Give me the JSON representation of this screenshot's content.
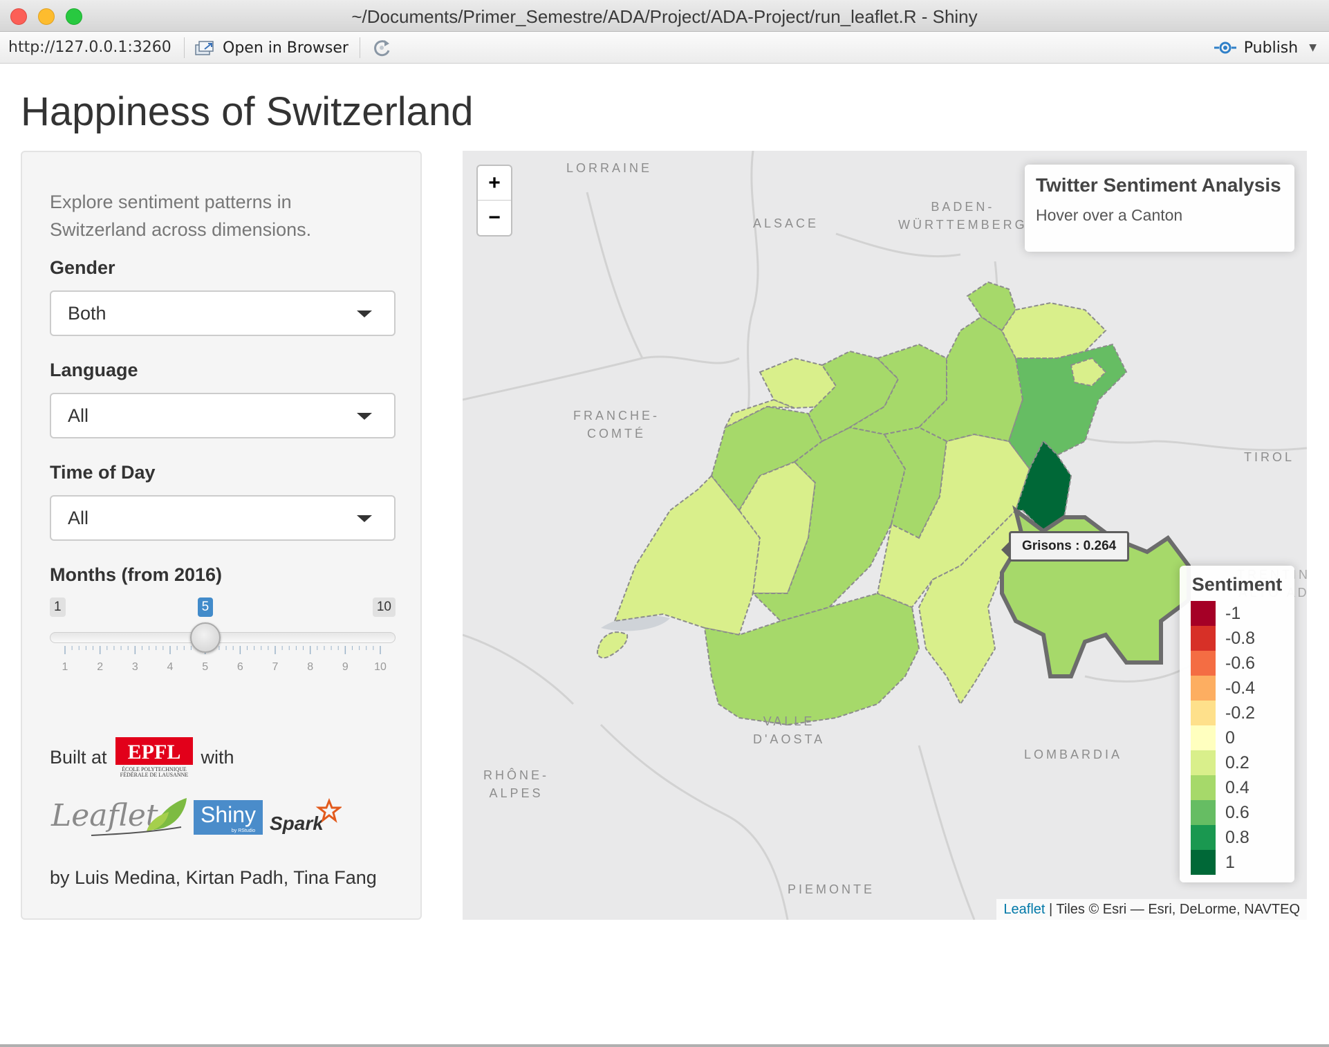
{
  "window": {
    "title": "~/Documents/Primer_Semestre/ADA/Project/ADA-Project/run_leaflet.R - Shiny"
  },
  "toolbar": {
    "url": "http://127.0.0.1:3260",
    "open_in_browser": "Open in Browser",
    "publish": "Publish"
  },
  "page": {
    "title": "Happiness of Switzerland"
  },
  "sidebar": {
    "intro": "Explore sentiment patterns in Switzerland across dimensions.",
    "gender_label": "Gender",
    "gender_value": "Both",
    "language_label": "Language",
    "language_value": "All",
    "time_label": "Time of Day",
    "time_value": "All",
    "months_label": "Months (from 2016)",
    "months": {
      "min": 1,
      "max": 10,
      "value": 5,
      "ticks": [
        1,
        2,
        3,
        4,
        5,
        6,
        7,
        8,
        9,
        10
      ]
    },
    "built_at": "Built at",
    "with": "with",
    "logos": {
      "epfl_line1": "ÉCOLE POLYTECHNIQUE",
      "epfl_line2": "FÉDÉRALE DE LAUSANNE",
      "leaflet": "Leaflet",
      "shiny": "Shiny",
      "shiny_by": "by RStudio",
      "spark": "Spark"
    },
    "authors": "by Luis Medina, Kirtan Padh, Tina Fang"
  },
  "map": {
    "zoom_in": "+",
    "zoom_out": "−",
    "info_title": "Twitter Sentiment Analysis",
    "info_subtitle": "Hover over a Canton",
    "tooltip": "Grisons : 0.264",
    "legend_title": "Sentiment",
    "legend": [
      {
        "label": "-1",
        "color": "#a50026"
      },
      {
        "label": "-0.8",
        "color": "#d73027"
      },
      {
        "label": "-0.6",
        "color": "#f46d43"
      },
      {
        "label": "-0.4",
        "color": "#fdae61"
      },
      {
        "label": "-0.2",
        "color": "#fee08b"
      },
      {
        "label": "0",
        "color": "#ffffbf"
      },
      {
        "label": "0.2",
        "color": "#d9ef8b"
      },
      {
        "label": "0.4",
        "color": "#a6d96a"
      },
      {
        "label": "0.6",
        "color": "#66bd63"
      },
      {
        "label": "0.8",
        "color": "#1a9850"
      },
      {
        "label": "1",
        "color": "#006837"
      }
    ],
    "labels": {
      "lorraine": "LORRAINE",
      "alsace": "ALSACE",
      "baden": "BADEN-\nWÜRTTEMBERG",
      "franche": "FRANCHE-\nCOMTÉ",
      "tirol": "TIROL",
      "valle": "VALLE\nD'AOSTA",
      "lombardia": "LOMBARDIA",
      "rhone": "RHÔNE-\nALPES",
      "piemonte": "PIEMONTE",
      "trentino": "TRENTINO-\nALTO ADIG"
    },
    "attribution_link": "Leaflet",
    "attribution_text": " | Tiles © Esri — Esri, DeLorme, NAVTEQ"
  }
}
